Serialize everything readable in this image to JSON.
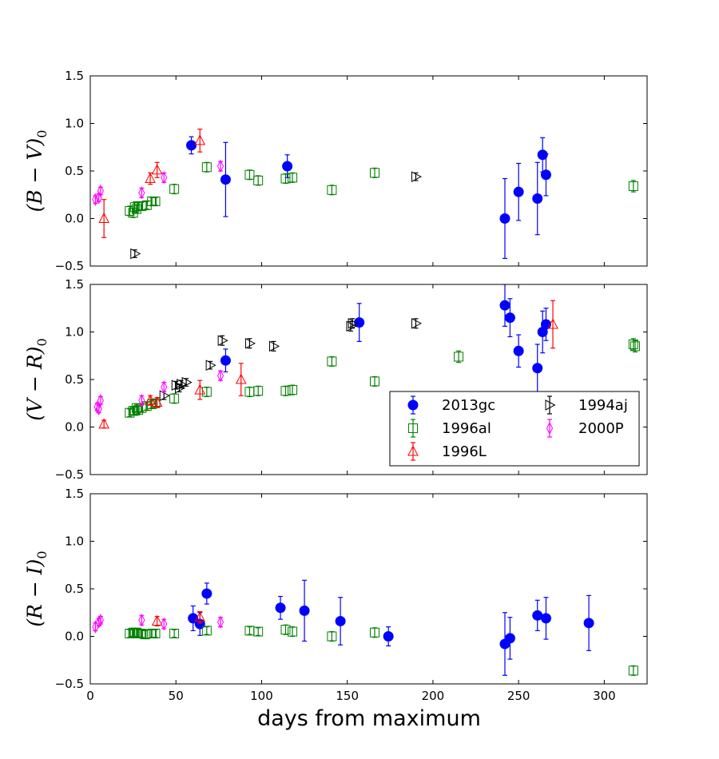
{
  "chart_data": {
    "type": "scatter",
    "xlabel": "days from maximum",
    "xlim": [
      0,
      325
    ],
    "xticks": [
      0,
      50,
      100,
      150,
      200,
      250,
      300
    ],
    "yticks": [
      -0.5,
      0.0,
      0.5,
      1.0,
      1.5
    ],
    "ytick_labels": [
      "−0.5",
      "0.0",
      "0.5",
      "1.0",
      "1.5"
    ],
    "series_styles": {
      "2013gc": {
        "marker": "circle",
        "color": "#0000ff",
        "filled": true
      },
      "1996al": {
        "marker": "square",
        "color": "#008000",
        "filled": false
      },
      "1996L": {
        "marker": "triangle-up",
        "color": "#ff0000",
        "filled": false
      },
      "1994aj": {
        "marker": "triangle-right",
        "color": "#000000",
        "filled": false
      },
      "2000P": {
        "marker": "thin-diamond",
        "color": "#ff00ff",
        "filled": false
      }
    },
    "legend": {
      "location": "lower-right of middle panel",
      "columns": 2,
      "entries": [
        "2013gc",
        "1996al",
        "1996L",
        "1994aj",
        "2000P"
      ]
    },
    "panels": [
      {
        "ylabel": "(B − V)₀",
        "ylabel_main": "(B − V)",
        "ylabel_sub": "0",
        "ylim": [
          -0.5,
          1.5
        ],
        "series": [
          {
            "name": "2013gc",
            "points": [
              [
                59,
                0.77,
                0.09
              ],
              [
                79,
                0.41,
                0.39
              ],
              [
                115,
                0.55,
                0.12
              ],
              [
                242,
                0.0,
                0.42
              ],
              [
                250,
                0.28,
                0.3
              ],
              [
                261,
                0.21,
                0.38
              ],
              [
                264,
                0.67,
                0.18
              ],
              [
                266,
                0.46,
                0.22
              ]
            ]
          },
          {
            "name": "1996al",
            "points": [
              [
                23,
                0.08,
                0.05
              ],
              [
                25,
                0.06,
                0.05
              ],
              [
                26,
                0.12,
                0.05
              ],
              [
                27,
                0.1,
                0.04
              ],
              [
                28,
                0.13,
                0.04
              ],
              [
                30,
                0.13,
                0.04
              ],
              [
                33,
                0.14,
                0.04
              ],
              [
                36,
                0.18,
                0.04
              ],
              [
                38,
                0.18,
                0.04
              ],
              [
                49,
                0.31,
                0.05
              ],
              [
                68,
                0.54,
                0.05
              ],
              [
                93,
                0.46,
                0.05
              ],
              [
                98,
                0.4,
                0.05
              ],
              [
                114,
                0.42,
                0.05
              ],
              [
                118,
                0.43,
                0.05
              ],
              [
                141,
                0.3,
                0.05
              ],
              [
                166,
                0.48,
                0.05
              ],
              [
                317,
                0.34,
                0.06
              ]
            ]
          },
          {
            "name": "1996L",
            "points": [
              [
                8,
                0.0,
                0.2
              ],
              [
                35,
                0.42,
                0.06
              ],
              [
                39,
                0.51,
                0.08
              ],
              [
                64,
                0.82,
                0.12
              ]
            ]
          },
          {
            "name": "1994aj",
            "points": [
              [
                26,
                -0.37,
                0.04
              ],
              [
                190,
                0.44,
                0.04
              ]
            ]
          },
          {
            "name": "2000P",
            "points": [
              [
                3,
                0.2,
                0.04
              ],
              [
                5,
                0.22,
                0.04
              ],
              [
                6,
                0.29,
                0.04
              ],
              [
                30,
                0.27,
                0.05
              ],
              [
                43,
                0.43,
                0.05
              ],
              [
                76,
                0.55,
                0.05
              ]
            ]
          }
        ]
      },
      {
        "ylabel": "(V − R)₀",
        "ylabel_main": "(V − R)",
        "ylabel_sub": "0",
        "ylim": [
          -0.5,
          1.5
        ],
        "series": [
          {
            "name": "2013gc",
            "points": [
              [
                79,
                0.7,
                0.12
              ],
              [
                157,
                1.1,
                0.2
              ],
              [
                242,
                1.28,
                0.22
              ],
              [
                245,
                1.15,
                0.2
              ],
              [
                250,
                0.8,
                0.17
              ],
              [
                261,
                0.62,
                0.25
              ],
              [
                264,
                1.0,
                0.22
              ],
              [
                266,
                1.08,
                0.17
              ]
            ]
          },
          {
            "name": "1996al",
            "points": [
              [
                23,
                0.15,
                0.04
              ],
              [
                25,
                0.17,
                0.04
              ],
              [
                26,
                0.17,
                0.04
              ],
              [
                27,
                0.2,
                0.04
              ],
              [
                28,
                0.18,
                0.04
              ],
              [
                30,
                0.2,
                0.04
              ],
              [
                33,
                0.22,
                0.04
              ],
              [
                36,
                0.24,
                0.04
              ],
              [
                38,
                0.25,
                0.04
              ],
              [
                49,
                0.3,
                0.05
              ],
              [
                68,
                0.37,
                0.05
              ],
              [
                93,
                0.37,
                0.05
              ],
              [
                98,
                0.38,
                0.05
              ],
              [
                114,
                0.38,
                0.05
              ],
              [
                118,
                0.39,
                0.05
              ],
              [
                141,
                0.69,
                0.05
              ],
              [
                166,
                0.48,
                0.05
              ],
              [
                215,
                0.74,
                0.06
              ],
              [
                317,
                0.87,
                0.06
              ],
              [
                318,
                0.85,
                0.06
              ]
            ]
          },
          {
            "name": "1996L",
            "points": [
              [
                8,
                0.03,
                0.04
              ],
              [
                35,
                0.28,
                0.05
              ],
              [
                39,
                0.26,
                0.05
              ],
              [
                64,
                0.39,
                0.1
              ],
              [
                88,
                0.5,
                0.17
              ],
              [
                270,
                1.08,
                0.25
              ]
            ]
          },
          {
            "name": "1994aj",
            "points": [
              [
                43,
                0.33,
                0.04
              ],
              [
                50,
                0.44,
                0.04
              ],
              [
                52,
                0.41,
                0.04
              ],
              [
                53,
                0.45,
                0.04
              ],
              [
                56,
                0.47,
                0.04
              ],
              [
                70,
                0.65,
                0.04
              ],
              [
                77,
                0.91,
                0.05
              ],
              [
                93,
                0.88,
                0.05
              ],
              [
                107,
                0.85,
                0.05
              ],
              [
                152,
                1.06,
                0.05
              ],
              [
                153,
                1.09,
                0.05
              ],
              [
                190,
                1.09,
                0.05
              ]
            ]
          },
          {
            "name": "2000P",
            "points": [
              [
                4,
                0.21,
                0.04
              ],
              [
                5,
                0.19,
                0.04
              ],
              [
                6,
                0.28,
                0.04
              ],
              [
                30,
                0.28,
                0.05
              ],
              [
                43,
                0.42,
                0.05
              ],
              [
                76,
                0.54,
                0.05
              ]
            ]
          }
        ]
      },
      {
        "ylabel": "(R − I)₀",
        "ylabel_main": "(R − I)",
        "ylabel_sub": "0",
        "ylim": [
          -0.5,
          1.5
        ],
        "series": [
          {
            "name": "2013gc",
            "points": [
              [
                60,
                0.19,
                0.13
              ],
              [
                64,
                0.13,
                0.12
              ],
              [
                68,
                0.45,
                0.11
              ],
              [
                111,
                0.3,
                0.12
              ],
              [
                125,
                0.27,
                0.32
              ],
              [
                146,
                0.16,
                0.25
              ],
              [
                174,
                0.0,
                0.1
              ],
              [
                242,
                -0.08,
                0.33
              ],
              [
                245,
                -0.02,
                0.22
              ],
              [
                261,
                0.22,
                0.16
              ],
              [
                266,
                0.19,
                0.22
              ],
              [
                291,
                0.14,
                0.29
              ]
            ]
          },
          {
            "name": "1996al",
            "points": [
              [
                23,
                0.03,
                0.04
              ],
              [
                25,
                0.04,
                0.04
              ],
              [
                26,
                0.04,
                0.04
              ],
              [
                27,
                0.04,
                0.04
              ],
              [
                28,
                0.03,
                0.04
              ],
              [
                30,
                0.03,
                0.04
              ],
              [
                32,
                0.02,
                0.04
              ],
              [
                36,
                0.03,
                0.04
              ],
              [
                38,
                0.03,
                0.04
              ],
              [
                49,
                0.03,
                0.04
              ],
              [
                68,
                0.06,
                0.04
              ],
              [
                93,
                0.06,
                0.04
              ],
              [
                98,
                0.05,
                0.04
              ],
              [
                114,
                0.07,
                0.05
              ],
              [
                118,
                0.05,
                0.05
              ],
              [
                141,
                0.0,
                0.05
              ],
              [
                166,
                0.04,
                0.05
              ],
              [
                317,
                -0.36,
                0.05
              ]
            ]
          },
          {
            "name": "1996L",
            "points": [
              [
                39,
                0.16,
                0.05
              ],
              [
                64,
                0.2,
                0.06
              ]
            ]
          },
          {
            "name": "1994aj",
            "points": []
          },
          {
            "name": "2000P",
            "points": [
              [
                3,
                0.1,
                0.04
              ],
              [
                5,
                0.15,
                0.04
              ],
              [
                6,
                0.17,
                0.04
              ],
              [
                30,
                0.17,
                0.05
              ],
              [
                43,
                0.13,
                0.05
              ],
              [
                76,
                0.15,
                0.05
              ]
            ]
          }
        ]
      }
    ]
  }
}
